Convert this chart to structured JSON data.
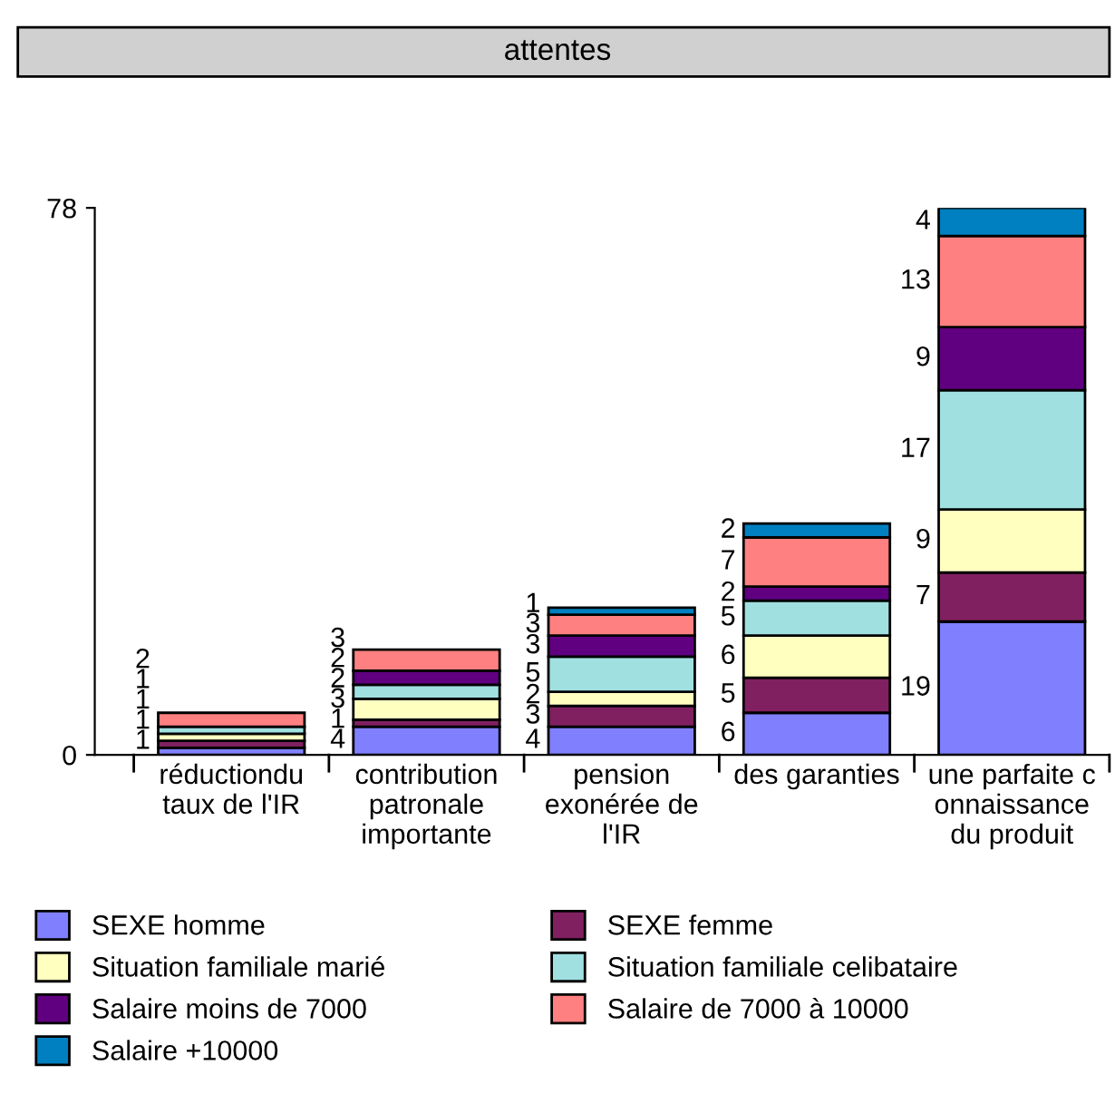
{
  "chart_data": {
    "type": "bar",
    "title": "attentes",
    "stacked": true,
    "categories": [
      "réductiondu\ntaux de l'IR",
      "contribution\npatronale\nimportante",
      "pension\nexonérée de\nl'IR",
      "des garanties",
      "une parfaite c\nonnaissance\ndu produit"
    ],
    "series": [
      {
        "name": "SEXE homme",
        "color": "#8080ff",
        "values": [
          1,
          4,
          4,
          6,
          19
        ],
        "value_labels": [
          "1",
          "4",
          "4",
          "6",
          "19"
        ]
      },
      {
        "name": "SEXE femme",
        "color": "#802060",
        "values": [
          1,
          1,
          3,
          5,
          7
        ],
        "value_labels": [
          "1",
          "1",
          "3",
          "5",
          "7"
        ]
      },
      {
        "name": "Situation familiale marié",
        "color": "#ffffc0",
        "values": [
          1,
          3,
          2,
          6,
          9
        ],
        "value_labels": [
          "1",
          "3",
          "2",
          "6",
          "9"
        ]
      },
      {
        "name": "Situation familiale celibataire",
        "color": "#a0e0e0",
        "values": [
          1,
          2,
          5,
          5,
          17
        ],
        "value_labels": [
          "1",
          "2",
          "5",
          "5",
          "17"
        ]
      },
      {
        "name": "Salaire moins de 7000",
        "color": "#600080",
        "values": [
          0,
          2,
          3,
          2,
          9
        ],
        "value_labels": [
          null,
          "2",
          "3",
          "2",
          "9"
        ]
      },
      {
        "name": "Salaire de 7000 à 10000",
        "color": "#ff8080",
        "values": [
          2,
          3,
          3,
          7,
          13
        ],
        "value_labels": [
          "2",
          "3",
          "3",
          "7",
          "13"
        ]
      },
      {
        "name": "Salaire +10000",
        "color": "#0080c0",
        "values": [
          0,
          0,
          1,
          2,
          4
        ],
        "value_labels": [
          null,
          null,
          "1",
          "2",
          "4"
        ]
      }
    ],
    "ylim": [
      0,
      78
    ],
    "yticks": [
      0,
      78
    ],
    "grid": false,
    "legend": "bottom"
  }
}
